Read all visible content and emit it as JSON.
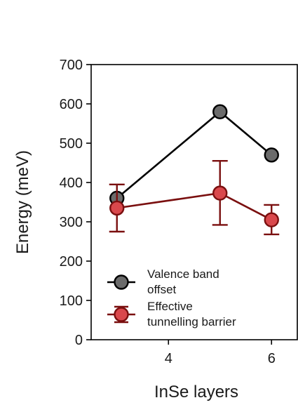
{
  "chart_data": {
    "type": "line",
    "xlabel": "InSe layers",
    "ylabel": "Energy (meV)",
    "xlim": [
      2.5,
      6.5
    ],
    "ylim": [
      0,
      700
    ],
    "xticks": [
      4,
      6
    ],
    "yticks": [
      0,
      100,
      200,
      300,
      400,
      500,
      600,
      700
    ],
    "grid": false,
    "legend_position": "bottom-left",
    "series": [
      {
        "name": "Valence band offset",
        "legend_lines": [
          "Valence band",
          "offset"
        ],
        "color": "#000000",
        "marker_fill": "#6b6b6b",
        "x": [
          3,
          5,
          6
        ],
        "y": [
          360,
          580,
          470
        ]
      },
      {
        "name": "Effective tunnelling barrier",
        "legend_lines": [
          "Effective",
          "tunnelling barrier"
        ],
        "color": "#7a0f0f",
        "marker_fill": "#d9484c",
        "x": [
          3,
          5,
          6
        ],
        "y": [
          335,
          373,
          305
        ],
        "yerr_low": [
          275,
          292,
          268
        ],
        "yerr_high": [
          395,
          455,
          343
        ]
      }
    ]
  }
}
